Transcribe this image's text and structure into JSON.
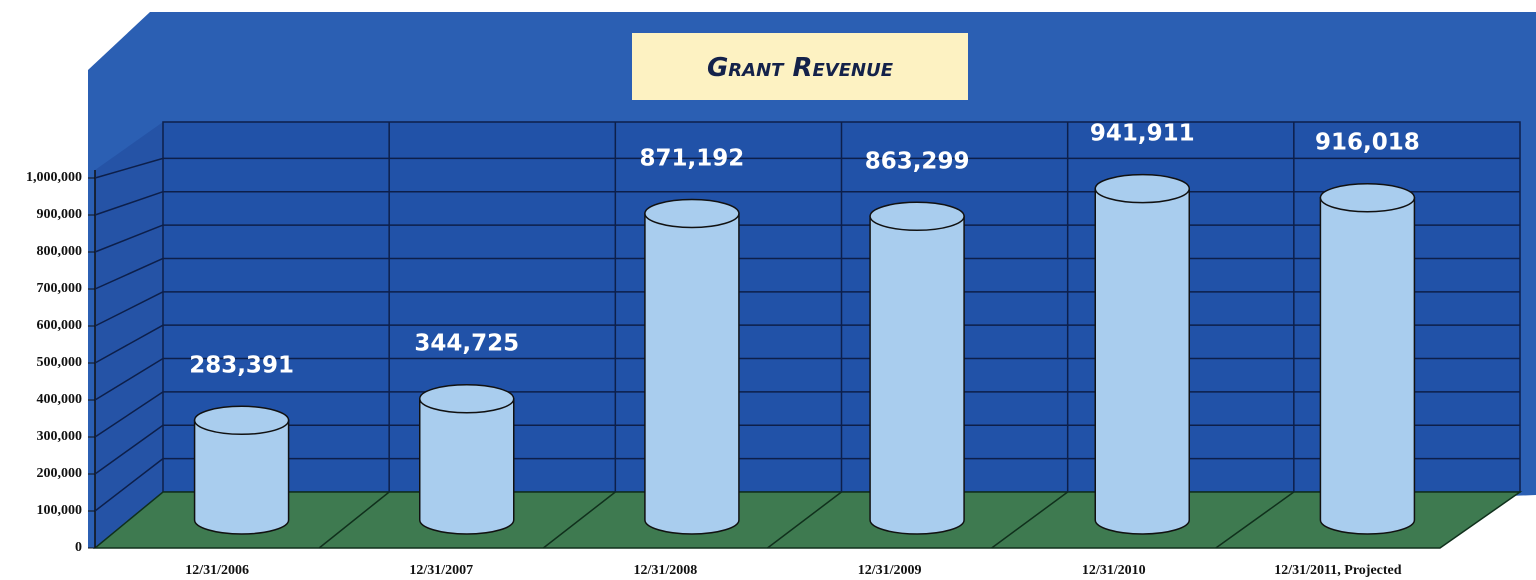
{
  "chart_data": {
    "type": "bar",
    "title": "Grant Revenue",
    "categories": [
      "12/31/2006",
      "12/31/2007",
      "12/31/2008",
      "12/31/2009",
      "12/31/2010",
      "12/31/2011, Projected"
    ],
    "values": [
      283391,
      344725,
      871192,
      863299,
      941911,
      916018
    ],
    "value_labels": [
      "283,391",
      "344,725",
      "871,192",
      "863,299",
      "941,911",
      "916,018"
    ],
    "color": "#a9cdee",
    "ylim": [
      0,
      1100000
    ],
    "yticks": [
      0,
      {
        "value": 100000,
        "label": "100,000"
      },
      {
        "value": 200000,
        "label": "200,000"
      },
      {
        "value": 300000,
        "label": "300,000"
      },
      {
        "value": 400000,
        "label": "400,000"
      },
      {
        "value": 500000,
        "label": "500,000"
      },
      {
        "value": 600000,
        "label": "600,000"
      },
      {
        "value": 700000,
        "label": "700,000"
      },
      {
        "value": 800000,
        "label": "800,000"
      },
      {
        "value": 900000,
        "label": "900,000"
      },
      {
        "value": 1000000,
        "label": "1,000,000"
      }
    ],
    "grid": true
  }
}
